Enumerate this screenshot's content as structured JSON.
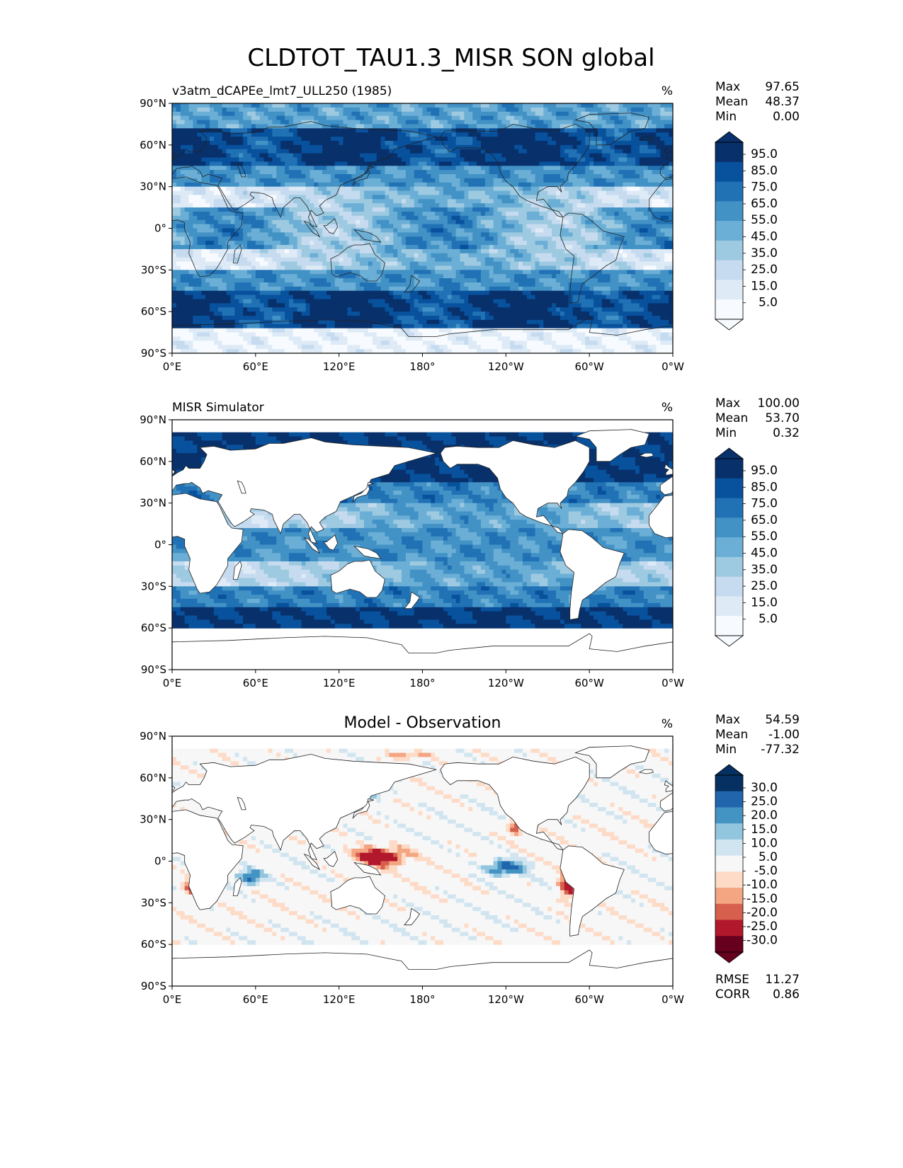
{
  "title": "CLDTOT_TAU1.3_MISR SON global",
  "colors": {
    "seq": [
      "#f7fbff",
      "#deebf7",
      "#c6dbef",
      "#9ecae1",
      "#6baed6",
      "#4292c6",
      "#2171b5",
      "#08519c",
      "#08306b"
    ],
    "div": [
      "#67001f",
      "#b2182b",
      "#d6604d",
      "#f4a582",
      "#fddbc7",
      "#f7f7f7",
      "#d1e5f0",
      "#92c5de",
      "#4393c3",
      "#2166ac",
      "#053061"
    ]
  },
  "chart_data": [
    {
      "type": "heatmap",
      "panel_title": "v3atm_dCAPEe_lmt7_ULL250 (1985)",
      "units": "%",
      "xticks": [
        "0°E",
        "60°E",
        "120°E",
        "180°",
        "120°W",
        "60°W",
        "0°W"
      ],
      "yticks": [
        "90°N",
        "60°N",
        "30°N",
        "0°",
        "30°S",
        "60°S",
        "90°S"
      ],
      "stats": [
        {
          "label": "Max",
          "value": "97.65"
        },
        {
          "label": "Mean",
          "value": "48.37"
        },
        {
          "label": "Min",
          "value": "0.00"
        }
      ],
      "colorbar": {
        "labels": [
          "95.0",
          "85.0",
          "75.0",
          "65.0",
          "55.0",
          "45.0",
          "35.0",
          "25.0",
          "15.0",
          "5.0"
        ]
      },
      "field": "model"
    },
    {
      "type": "heatmap",
      "panel_title": "MISR Simulator",
      "units": "%",
      "xticks": [
        "0°E",
        "60°E",
        "120°E",
        "180°",
        "120°W",
        "60°W",
        "0°W"
      ],
      "yticks": [
        "90°N",
        "60°N",
        "30°N",
        "0°",
        "30°S",
        "60°S",
        "90°S"
      ],
      "stats": [
        {
          "label": "Max",
          "value": "100.00"
        },
        {
          "label": "Mean",
          "value": "53.70"
        },
        {
          "label": "Min",
          "value": "0.32"
        }
      ],
      "colorbar": {
        "labels": [
          "95.0",
          "85.0",
          "75.0",
          "65.0",
          "55.0",
          "45.0",
          "35.0",
          "25.0",
          "15.0",
          "5.0"
        ]
      },
      "field": "obs"
    },
    {
      "type": "heatmap",
      "panel_title": "Model - Observation",
      "units": "%",
      "xticks": [
        "0°E",
        "60°E",
        "120°E",
        "180°",
        "120°W",
        "60°W",
        "0°W"
      ],
      "yticks": [
        "90°N",
        "60°N",
        "30°N",
        "0°",
        "30°S",
        "60°S",
        "90°S"
      ],
      "stats": [
        {
          "label": "Max",
          "value": "54.59"
        },
        {
          "label": "Mean",
          "value": "-1.00"
        },
        {
          "label": "Min",
          "value": "-77.32"
        }
      ],
      "colorbar": {
        "labels": [
          "30.0",
          "25.0",
          "20.0",
          "15.0",
          "10.0",
          "5.0",
          "-5.0",
          "-10.0",
          "-15.0",
          "-20.0",
          "-25.0",
          "-30.0"
        ]
      },
      "extra_stats": [
        {
          "label": "RMSE",
          "value": "11.27"
        },
        {
          "label": "CORR",
          "value": "0.86"
        }
      ],
      "field": "diff"
    }
  ]
}
